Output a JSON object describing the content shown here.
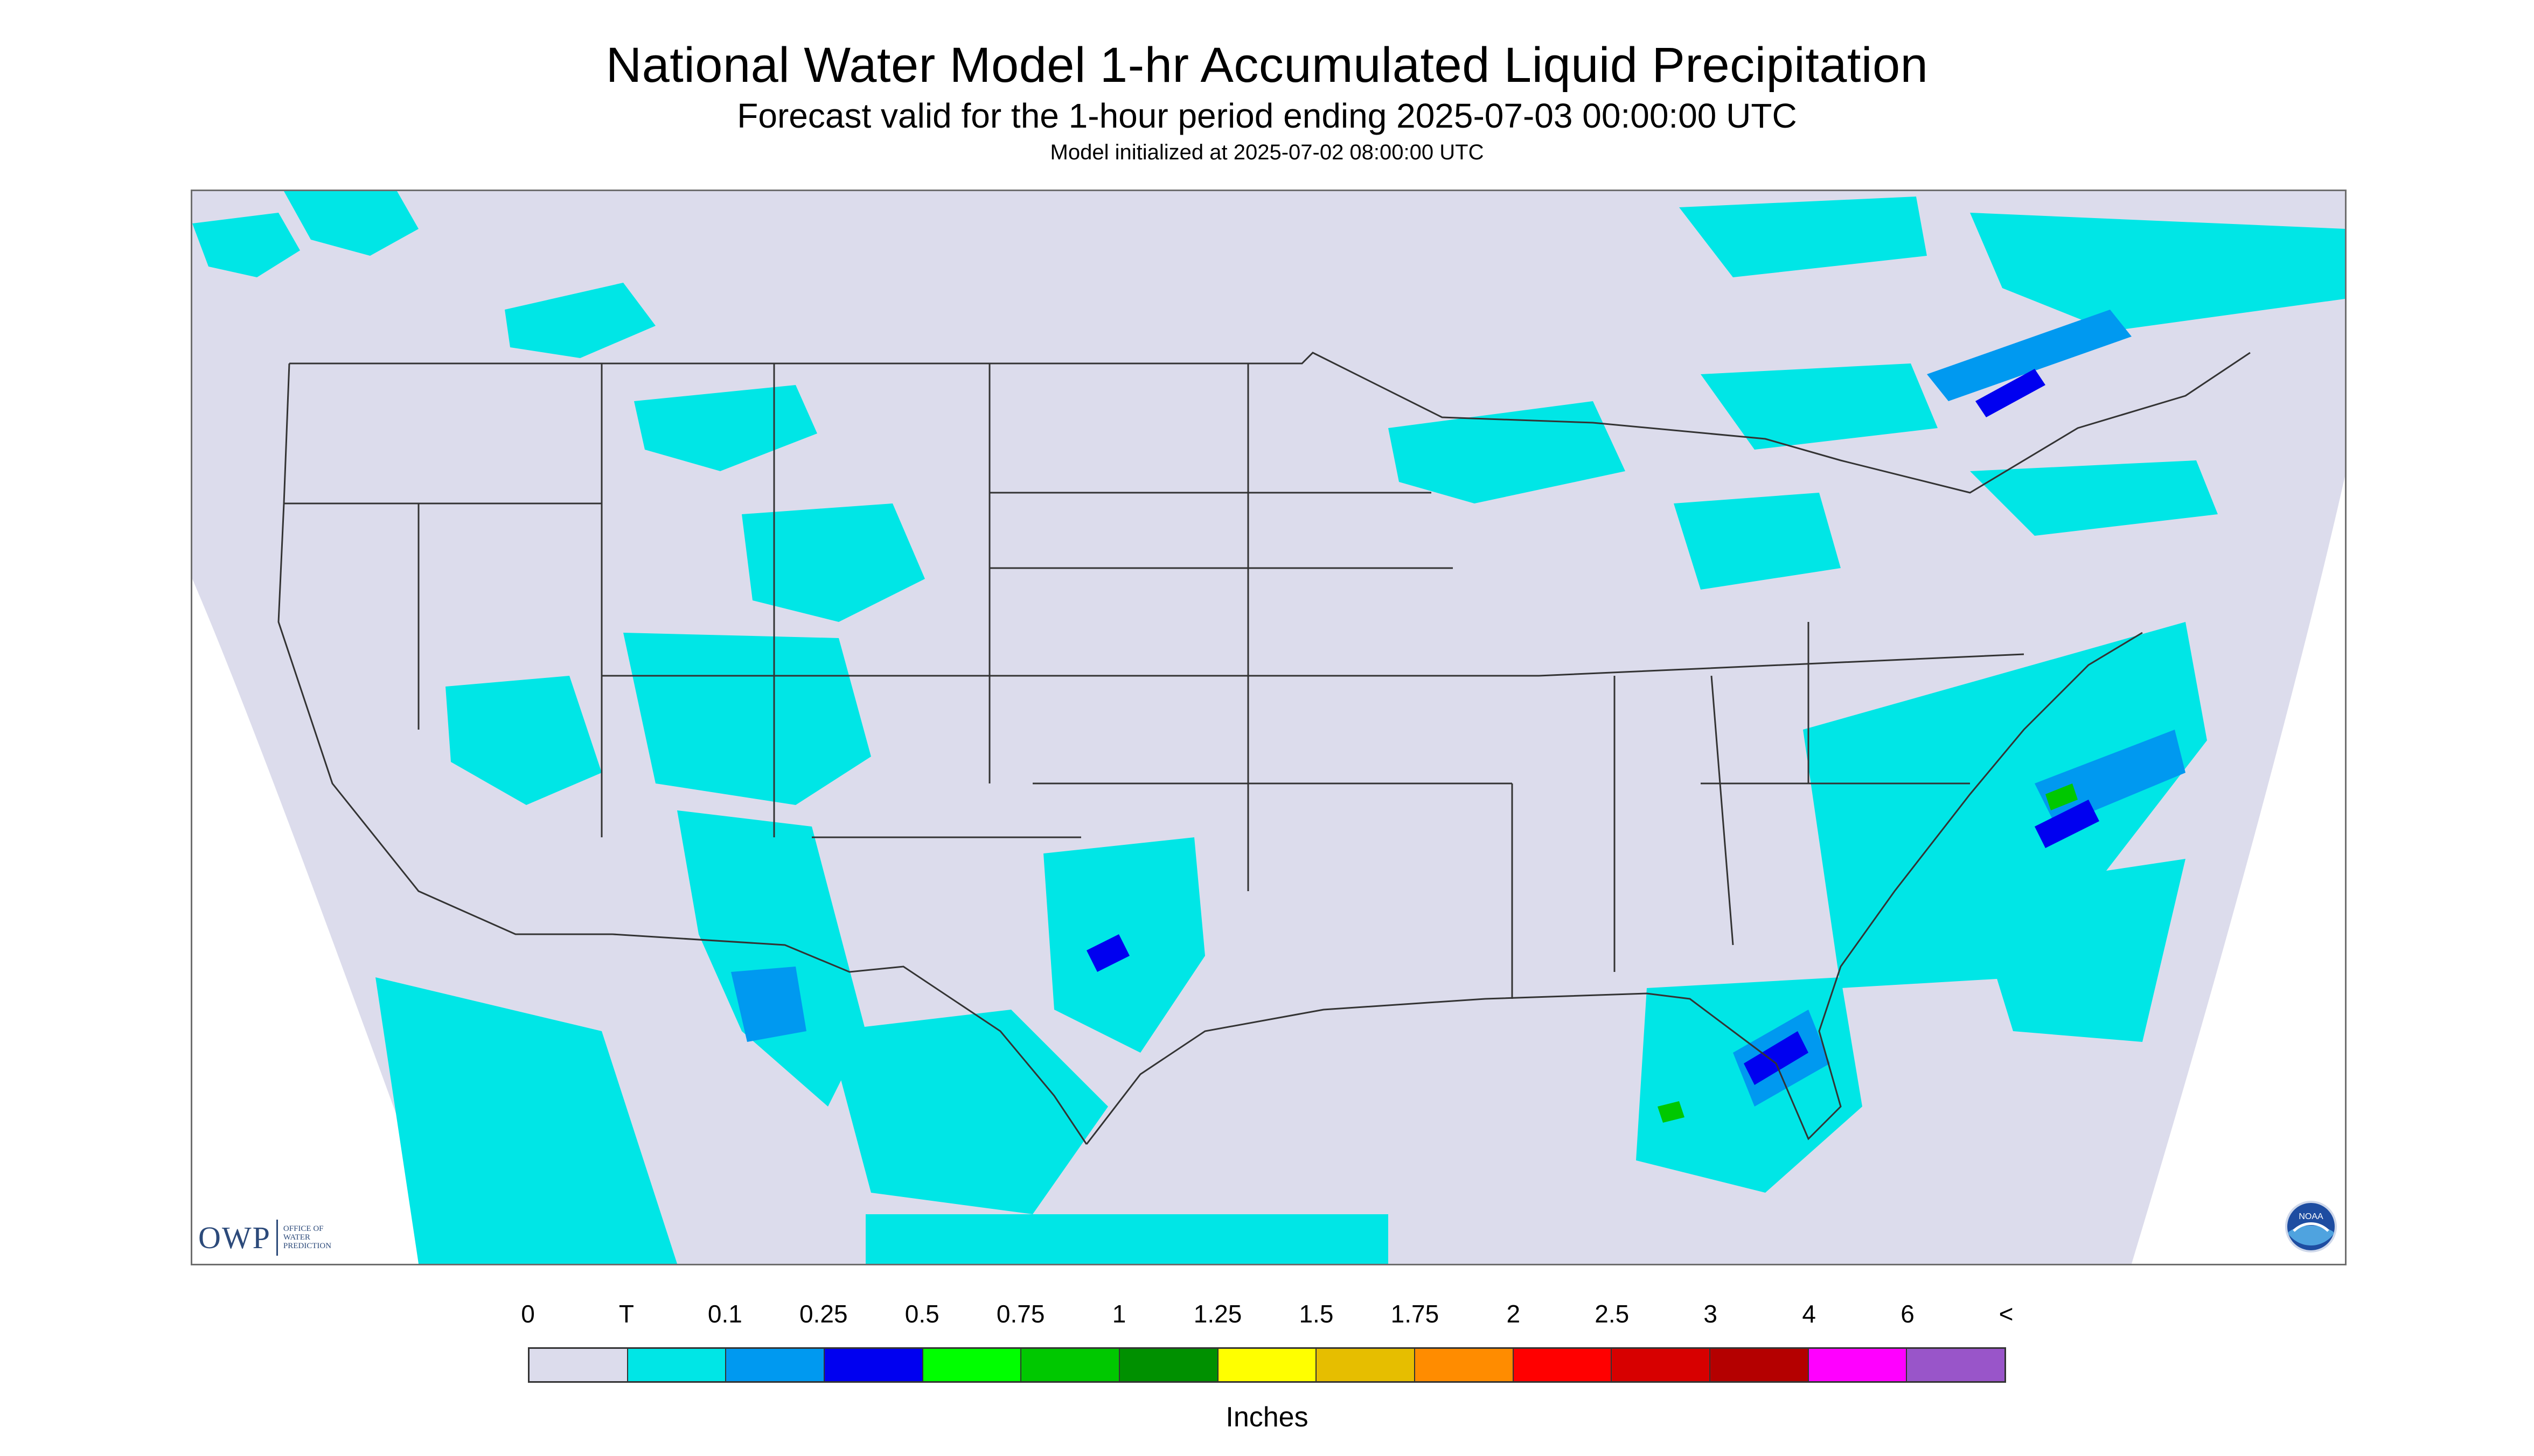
{
  "header": {
    "title": "National Water Model 1-hr Accumulated Liquid Precipitation",
    "subtitle": "Forecast valid for the 1-hour period ending 2025-07-03 00:00:00 UTC",
    "init_line": "Model initialized at 2025-07-02 08:00:00 UTC"
  },
  "logos": {
    "owp_mark": "OWP",
    "owp_text_lines": [
      "Office of",
      "Water",
      "Prediction"
    ],
    "noaa_text": "NOAA"
  },
  "map": {
    "region": "CONUS",
    "background_color": "#dcdcec",
    "outside_color": "#ffffff",
    "boundary_color": "#333333"
  },
  "legend": {
    "labels": [
      "0",
      "T",
      "0.1",
      "0.25",
      "0.5",
      "0.75",
      "1",
      "1.25",
      "1.5",
      "1.75",
      "2",
      "2.5",
      "3",
      "4",
      "6",
      "<"
    ],
    "colors": [
      "#dcdcec",
      "#00e6e6",
      "#0099f0",
      "#0000f0",
      "#00ff00",
      "#00c800",
      "#009000",
      "#ffff00",
      "#e6be00",
      "#ff8c00",
      "#ff0000",
      "#d70000",
      "#b40000",
      "#ff00ff",
      "#9955c9"
    ],
    "units": "Inches"
  }
}
